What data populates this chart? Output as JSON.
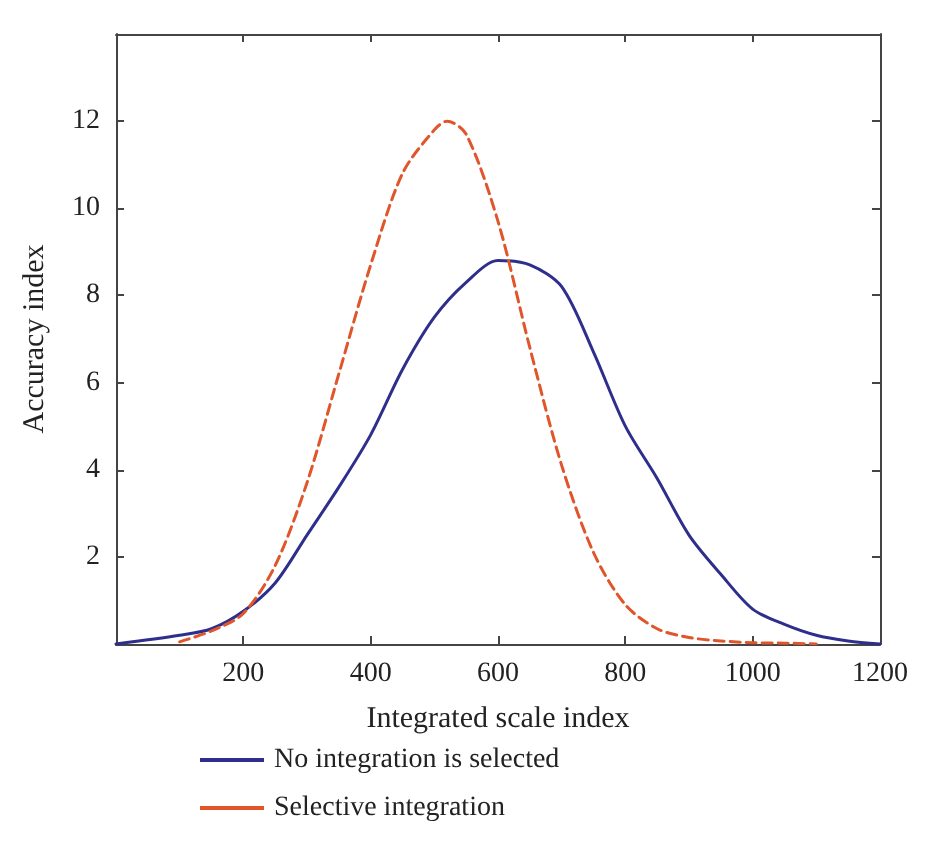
{
  "chart_data": {
    "type": "line",
    "xlabel": "Integrated scale index",
    "ylabel": "Accuracy index",
    "xlim": [
      0,
      1200
    ],
    "ylim": [
      0,
      14
    ],
    "xticks": [
      {
        "value": 0,
        "label": null
      },
      200,
      400,
      600,
      800,
      1000,
      1200
    ],
    "yticks": [
      {
        "value": 0,
        "label": null
      },
      2,
      4,
      6,
      8,
      10,
      12,
      {
        "value": 14,
        "label": null
      }
    ],
    "grid": false,
    "legend": "bottom left",
    "marker": "none",
    "series": [
      {
        "name": "No integration is selected",
        "color": "#2e2e8c",
        "line_style": "solid",
        "x": [
          0,
          100,
          150,
          200,
          250,
          300,
          350,
          400,
          450,
          500,
          550,
          600,
          650,
          700,
          750,
          800,
          850,
          900,
          950,
          1000,
          1050,
          1100,
          1150,
          1200
        ],
        "values": [
          0,
          0.2,
          0.35,
          0.75,
          1.4,
          2.5,
          3.6,
          4.8,
          6.3,
          7.5,
          8.3,
          8.8,
          8.7,
          8.2,
          6.7,
          5.0,
          3.8,
          2.5,
          1.6,
          0.8,
          0.45,
          0.2,
          0.07,
          0
        ]
      },
      {
        "name": "Selective integration",
        "color": "#e0552a",
        "line_style": "dashed",
        "x": [
          100,
          150,
          200,
          250,
          300,
          350,
          400,
          450,
          500,
          520,
          550,
          600,
          650,
          700,
          750,
          800,
          850,
          900,
          950,
          1000,
          1050,
          1100
        ],
        "values": [
          0.05,
          0.3,
          0.7,
          1.8,
          3.7,
          6.2,
          8.7,
          10.8,
          11.8,
          12.0,
          11.7,
          9.7,
          6.8,
          4.1,
          2.1,
          0.9,
          0.35,
          0.15,
          0.07,
          0.03,
          0.02,
          0
        ]
      }
    ]
  }
}
